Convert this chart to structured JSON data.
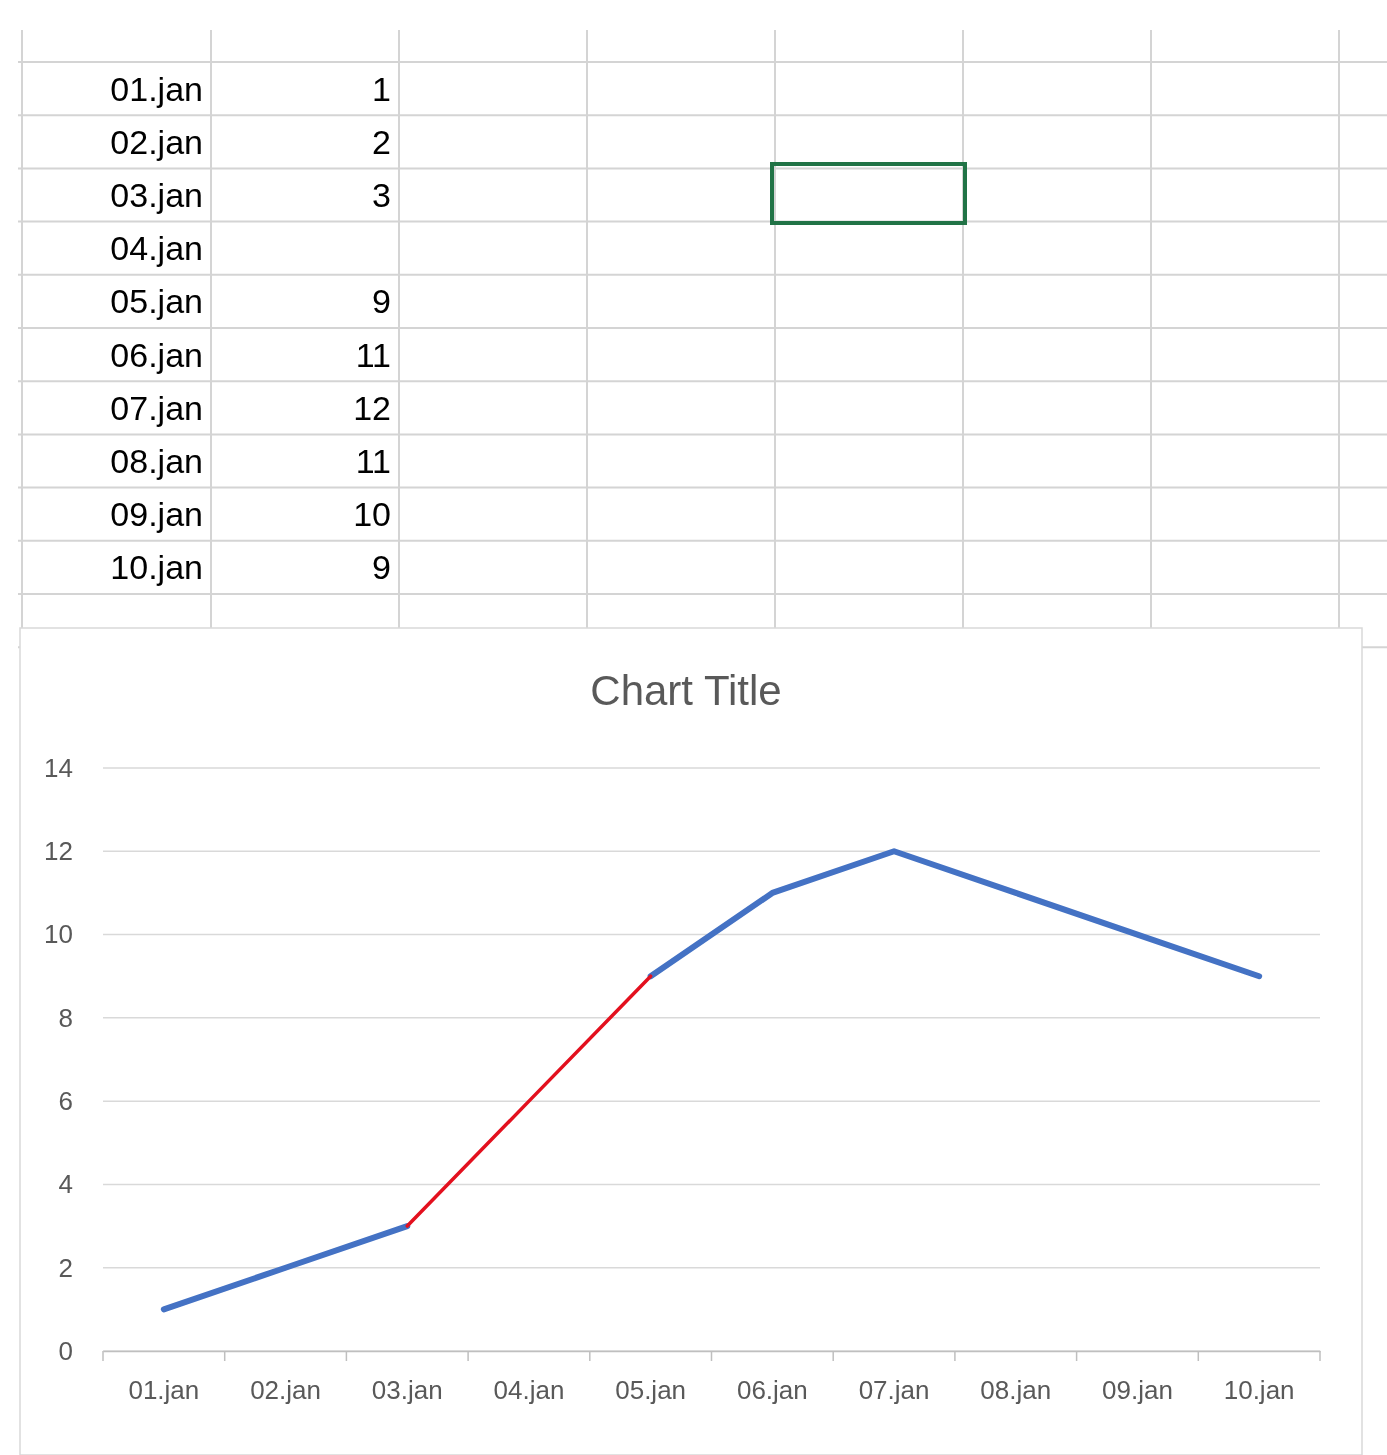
{
  "chart_data": [
    {
      "type": "other",
      "categories": [
        "01.jan",
        "02.jan",
        "03.jan",
        "04.jan",
        "05.jan",
        "06.jan",
        "07.jan",
        "08.jan",
        "09.jan",
        "10.jan"
      ],
      "values": [
        1,
        2,
        3,
        null,
        9,
        11,
        12,
        11,
        10,
        9
      ],
      "data_labels": true
    },
    {
      "type": "line",
      "title": "Chart Title",
      "categories": [
        "01.jan",
        "02.jan",
        "03.jan",
        "04.jan",
        "05.jan",
        "06.jan",
        "07.jan",
        "08.jan",
        "09.jan",
        "10.jan"
      ],
      "series": [
        {
          "color": "#4472c4",
          "values": [
            1,
            2,
            3,
            null,
            9,
            11,
            12,
            11,
            10,
            9
          ]
        },
        {
          "color": "#e3101e",
          "values": [
            null,
            null,
            3,
            6,
            9,
            null,
            null,
            null,
            null,
            null
          ]
        }
      ],
      "ylim": [
        0,
        14
      ],
      "yticks": [
        0,
        2,
        4,
        6,
        8,
        10,
        12,
        14
      ],
      "grid": "y"
    }
  ]
}
